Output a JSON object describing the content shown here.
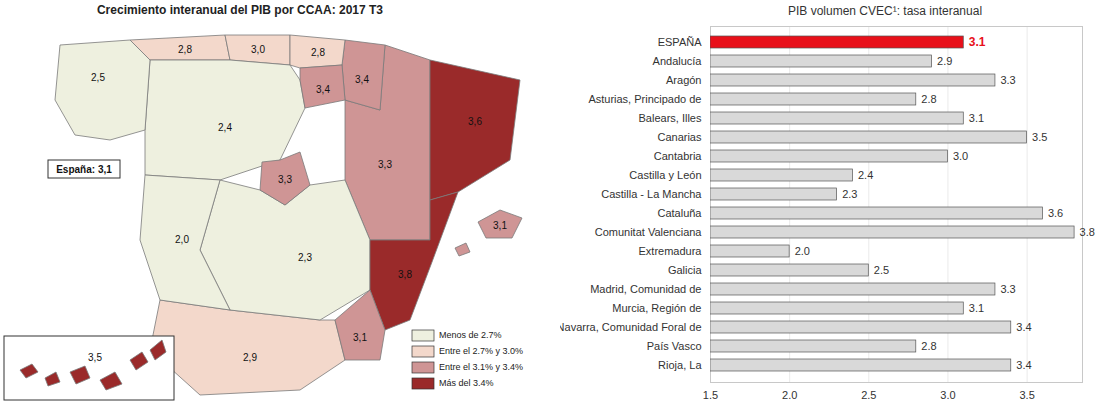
{
  "chart_data": [
    {
      "type": "choropleth",
      "title": "Crecimiento interanual del PIB por CCAA: 2017 T3",
      "annotation": "España: 3,1",
      "value_labels": [
        "2,9",
        "3,3",
        "2,8",
        "3,1",
        "3,5",
        "3,0",
        "2,4",
        "2,3",
        "3,6",
        "3,8",
        "2,0",
        "2,5",
        "3,3",
        "3,1",
        "3,4",
        "2,8",
        "3,4"
      ],
      "series": [
        {
          "name": "Menos de 2.7%",
          "color": "#eef0df",
          "values": [
            null,
            null,
            null,
            null,
            null,
            null,
            2.4,
            2.3,
            null,
            null,
            2.0,
            2.5,
            null,
            null,
            null,
            null,
            null
          ]
        },
        {
          "name": "Entre el 2.7% y 3.0%",
          "color": "#f3d8cb",
          "values": [
            2.9,
            null,
            2.8,
            null,
            null,
            3.0,
            null,
            null,
            null,
            null,
            null,
            null,
            null,
            null,
            null,
            2.8,
            null
          ]
        },
        {
          "name": "Entre el 3.1% y 3.4%",
          "color": "#cf9595",
          "values": [
            null,
            3.3,
            null,
            3.1,
            null,
            null,
            null,
            null,
            null,
            null,
            null,
            null,
            3.3,
            3.1,
            3.4,
            null,
            3.4
          ]
        },
        {
          "name": "Más del 3.4%",
          "color": "#9a2a2a",
          "values": [
            null,
            null,
            null,
            null,
            3.5,
            null,
            null,
            null,
            3.6,
            3.8,
            null,
            null,
            null,
            null,
            null,
            null,
            null
          ]
        }
      ],
      "legend": "bottom-right"
    },
    {
      "type": "bar",
      "title": "PIB volumen CVEC¹: tasa interanual",
      "orientation": "horizontal",
      "categories": [
        "ESPAÑA",
        "Andalucía",
        "Aragón",
        "Asturias, Principado de",
        "Balears, Illes",
        "Canarias",
        "Cantabria",
        "Castilla y León",
        "Castilla - La Mancha",
        "Cataluña",
        "Comunitat Valenciana",
        "Extremadura",
        "Galicia",
        "Madrid, Comunidad de",
        "Murcia, Región de",
        "Navarra, Comunidad Foral de",
        "País Vasco",
        "Rioja, La"
      ],
      "values": [
        3.1,
        2.9,
        3.3,
        2.8,
        3.1,
        3.5,
        3.0,
        2.4,
        2.3,
        3.6,
        3.8,
        2.0,
        2.5,
        3.3,
        3.1,
        3.4,
        2.8,
        3.4
      ],
      "value_labels": [
        "3.1",
        "2.9",
        "3.3",
        "2.8",
        "3.1",
        "3.5",
        "3.0",
        "2.4",
        "2.3",
        "3.6",
        "3.8",
        "2.0",
        "2.5",
        "3.3",
        "3.1",
        "3.4",
        "2.8",
        "3.4"
      ],
      "colors": [
        "#e8101a",
        "#d9d9d9",
        "#d9d9d9",
        "#d9d9d9",
        "#d9d9d9",
        "#d9d9d9",
        "#d9d9d9",
        "#d9d9d9",
        "#d9d9d9",
        "#d9d9d9",
        "#d9d9d9",
        "#d9d9d9",
        "#d9d9d9",
        "#d9d9d9",
        "#d9d9d9",
        "#d9d9d9",
        "#d9d9d9",
        "#d9d9d9"
      ],
      "xlim": [
        1.5,
        3.85
      ],
      "xticks": [
        1.5,
        {
          "value": 2,
          "label": "2.0"
        },
        2.5,
        {
          "value": 3,
          "label": "3.0"
        },
        3.5
      ],
      "grid": true,
      "data_labels": true
    }
  ]
}
